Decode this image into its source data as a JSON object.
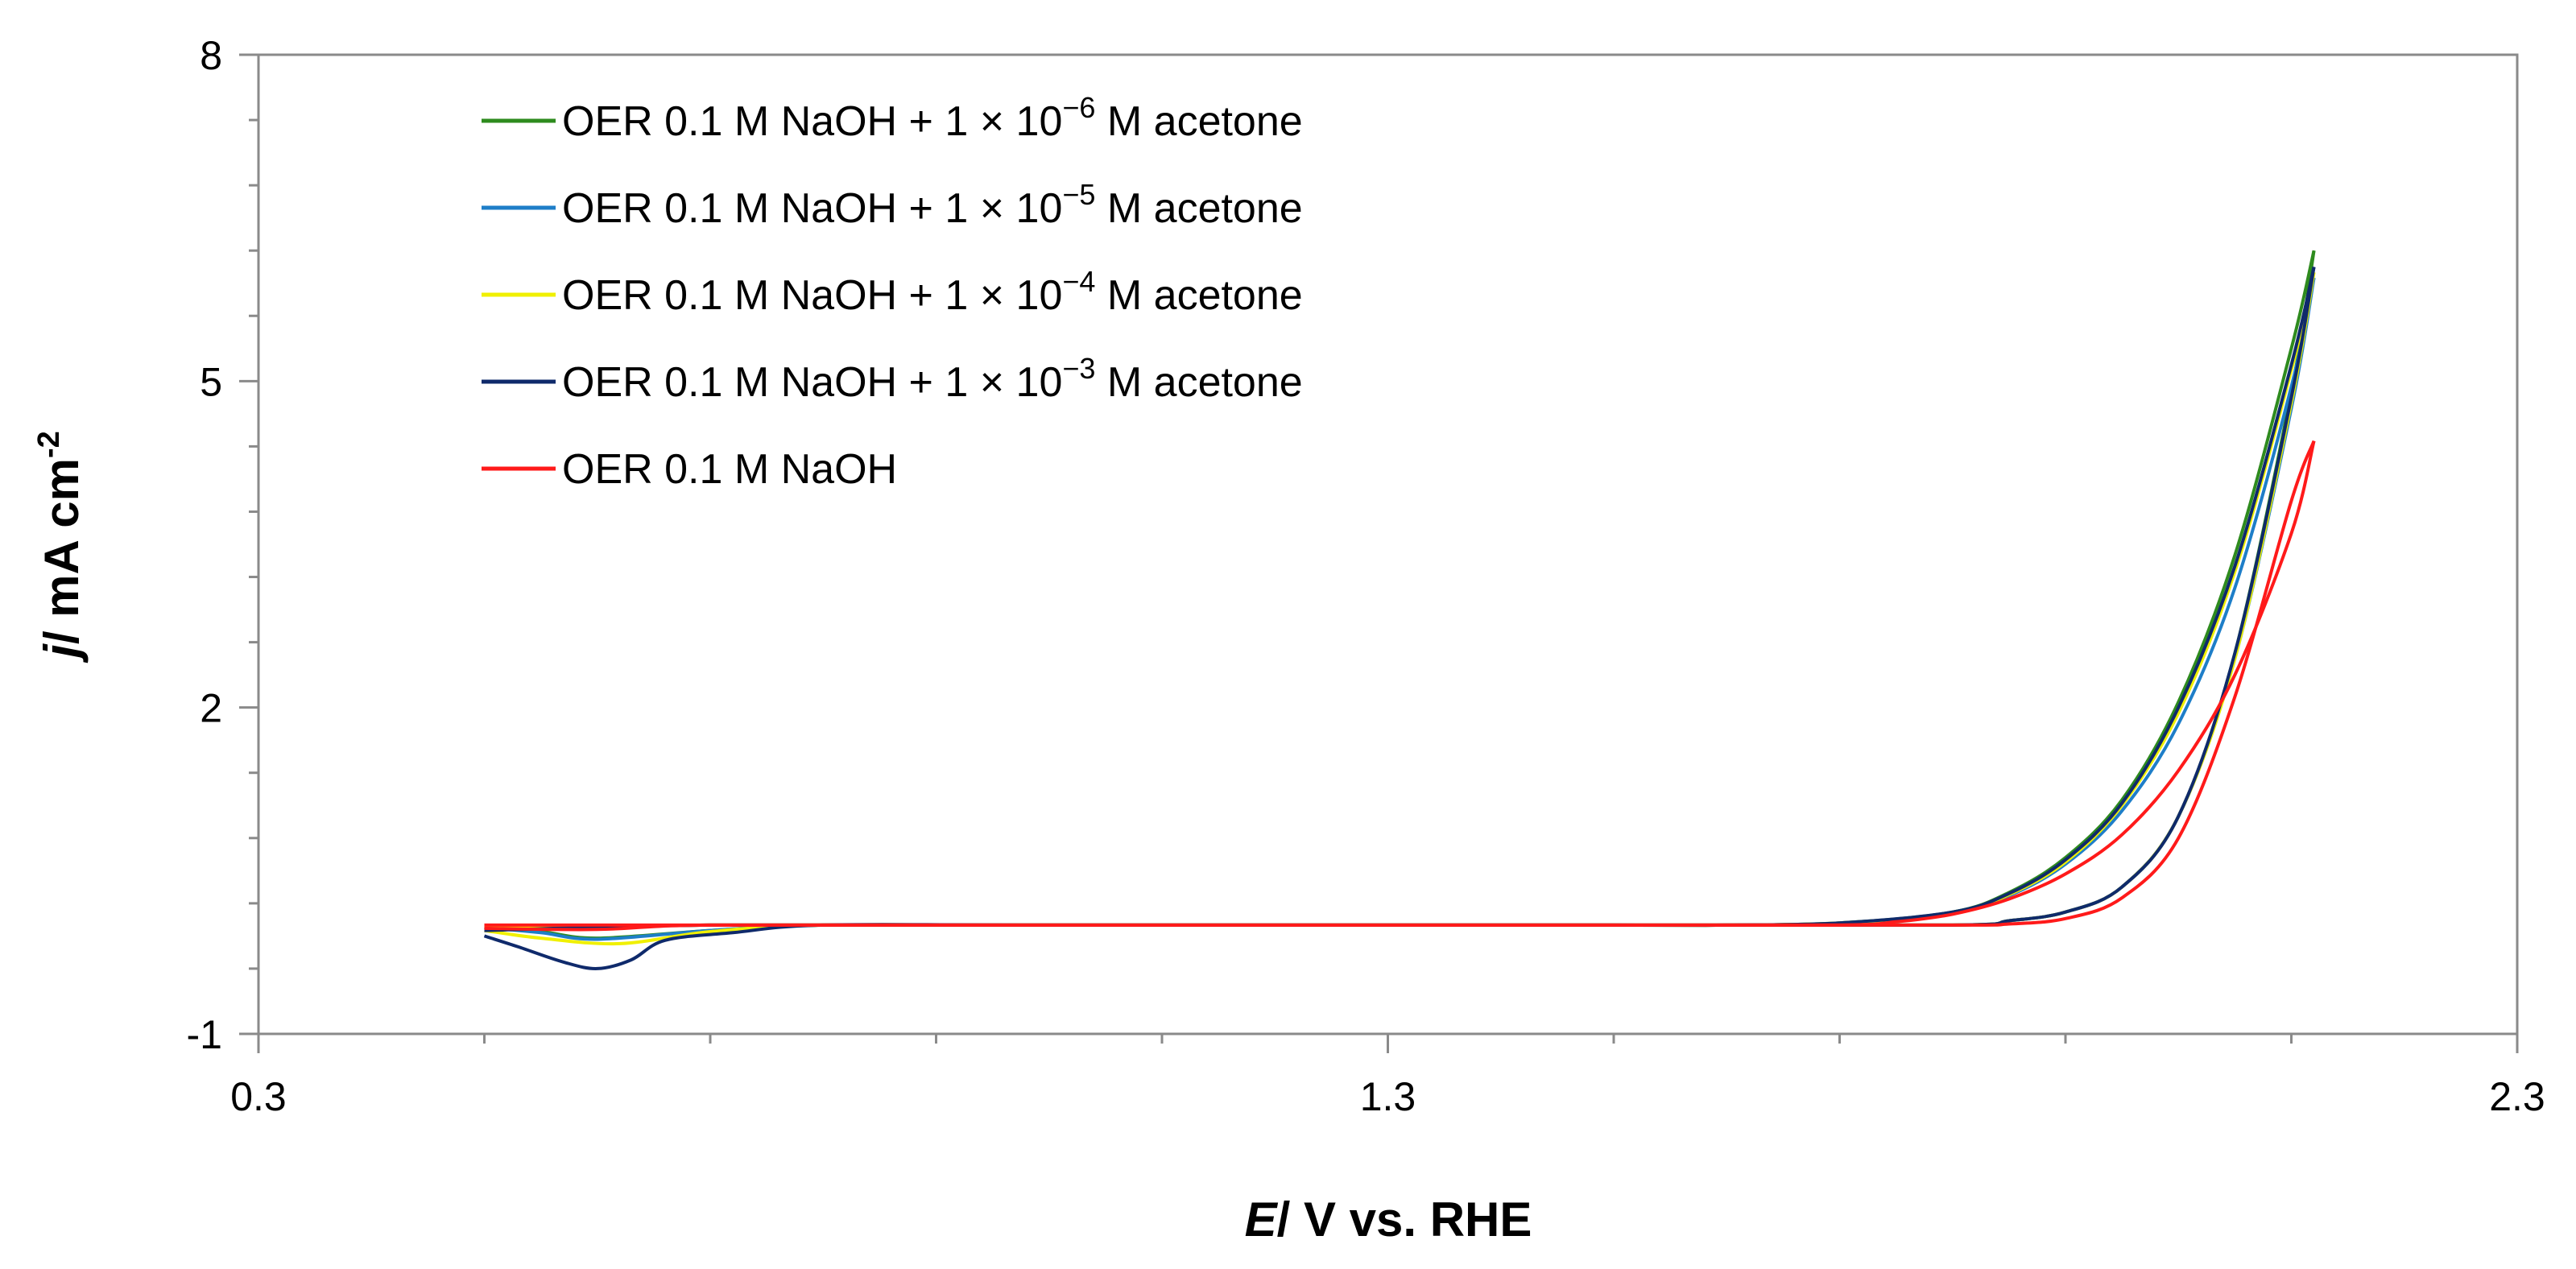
{
  "chart_data": {
    "type": "line",
    "title": "",
    "xlabel": {
      "italic": "E",
      "rest": "/ V  vs. RHE"
    },
    "ylabel": {
      "italic": "j",
      "rest": "/ mA cm",
      "sup": "-2"
    },
    "xlim": [
      0.3,
      2.3
    ],
    "ylim": [
      -1,
      8
    ],
    "xticks": [
      0.3,
      1.3,
      2.3
    ],
    "xtick_labels": [
      "0.3",
      "1.3",
      "2.3"
    ],
    "xminor_step": 0.2,
    "yticks": [
      -1,
      2,
      5,
      8
    ],
    "ytick_labels": [
      "-1",
      "2",
      "5",
      "8"
    ],
    "yminor_step": 0.6,
    "grid": false,
    "legend_position": "top-left",
    "series": [
      {
        "name": "OER 0.1 M NaOH + 1 × 10⁻⁶ M acetone",
        "legend": {
          "pre": "OER 0.1 M NaOH + 1 × 10",
          "sup": "−6",
          "post": " M acetone"
        },
        "color": "#2e8b1e",
        "forward": [
          [
            0.5,
            -0.02
          ],
          [
            0.7,
            0.0
          ],
          [
            1.0,
            0.0
          ],
          [
            1.5,
            0.0
          ],
          [
            1.6,
            0.0
          ],
          [
            1.7,
            0.02
          ],
          [
            1.8,
            0.12
          ],
          [
            1.85,
            0.3
          ],
          [
            1.9,
            0.62
          ],
          [
            1.95,
            1.15
          ],
          [
            2.0,
            2.05
          ],
          [
            2.05,
            3.4
          ],
          [
            2.1,
            5.3
          ],
          [
            2.12,
            6.2
          ]
        ],
        "reverse": [
          [
            2.12,
            6.2
          ],
          [
            2.1,
            4.9
          ],
          [
            2.05,
            2.5
          ],
          [
            2.0,
            1.0
          ],
          [
            1.95,
            0.35
          ],
          [
            1.9,
            0.12
          ],
          [
            1.85,
            0.04
          ],
          [
            1.8,
            0.0
          ],
          [
            1.5,
            0.0
          ],
          [
            1.0,
            0.0
          ],
          [
            0.8,
            0.0
          ],
          [
            0.7,
            -0.05
          ],
          [
            0.6,
            -0.12
          ],
          [
            0.55,
            -0.06
          ],
          [
            0.5,
            -0.02
          ]
        ]
      },
      {
        "name": "OER 0.1 M NaOH + 1 × 10⁻⁵ M acetone",
        "legend": {
          "pre": "OER 0.1 M NaOH + 1 × 10",
          "sup": "−5",
          "post": " M acetone"
        },
        "color": "#1e7ec8",
        "forward": [
          [
            0.5,
            -0.02
          ],
          [
            0.7,
            0.0
          ],
          [
            1.0,
            0.0
          ],
          [
            1.5,
            0.0
          ],
          [
            1.6,
            0.0
          ],
          [
            1.7,
            0.02
          ],
          [
            1.8,
            0.11
          ],
          [
            1.85,
            0.27
          ],
          [
            1.9,
            0.56
          ],
          [
            1.95,
            1.05
          ],
          [
            2.0,
            1.85
          ],
          [
            2.05,
            3.1
          ],
          [
            2.1,
            4.95
          ],
          [
            2.12,
            5.95
          ]
        ],
        "reverse": [
          [
            2.12,
            5.95
          ],
          [
            2.1,
            4.75
          ],
          [
            2.05,
            2.45
          ],
          [
            2.0,
            1.0
          ],
          [
            1.95,
            0.35
          ],
          [
            1.9,
            0.12
          ],
          [
            1.85,
            0.04
          ],
          [
            1.8,
            0.0
          ],
          [
            1.5,
            0.0
          ],
          [
            1.0,
            0.0
          ],
          [
            0.8,
            0.0
          ],
          [
            0.7,
            -0.05
          ],
          [
            0.6,
            -0.13
          ],
          [
            0.55,
            -0.07
          ],
          [
            0.5,
            -0.02
          ]
        ]
      },
      {
        "name": "OER 0.1 M NaOH + 1 × 10⁻⁴ M acetone",
        "legend": {
          "pre": "OER 0.1 M NaOH + 1 × 10",
          "sup": "−4",
          "post": " M acetone"
        },
        "color": "#f0f000",
        "forward": [
          [
            0.5,
            -0.02
          ],
          [
            0.7,
            0.0
          ],
          [
            1.0,
            0.0
          ],
          [
            1.5,
            0.0
          ],
          [
            1.6,
            0.0
          ],
          [
            1.7,
            0.02
          ],
          [
            1.8,
            0.11
          ],
          [
            1.85,
            0.28
          ],
          [
            1.9,
            0.58
          ],
          [
            1.95,
            1.1
          ],
          [
            2.0,
            1.95
          ],
          [
            2.05,
            3.25
          ],
          [
            2.1,
            5.1
          ],
          [
            2.12,
            6.0
          ]
        ],
        "reverse": [
          [
            2.12,
            6.0
          ],
          [
            2.1,
            4.8
          ],
          [
            2.05,
            2.45
          ],
          [
            2.0,
            1.0
          ],
          [
            1.95,
            0.35
          ],
          [
            1.9,
            0.12
          ],
          [
            1.85,
            0.04
          ],
          [
            1.8,
            0.0
          ],
          [
            1.5,
            0.0
          ],
          [
            1.0,
            0.0
          ],
          [
            0.8,
            0.0
          ],
          [
            0.7,
            -0.06
          ],
          [
            0.62,
            -0.17
          ],
          [
            0.55,
            -0.12
          ],
          [
            0.5,
            -0.05
          ]
        ]
      },
      {
        "name": "OER 0.1 M NaOH + 1 × 10⁻³ M acetone",
        "legend": {
          "pre": "OER 0.1 M NaOH + 1 × 10",
          "sup": "−3",
          "post": " M acetone"
        },
        "color": "#0f2a6b",
        "forward": [
          [
            0.5,
            -0.05
          ],
          [
            0.7,
            0.0
          ],
          [
            1.0,
            0.0
          ],
          [
            1.5,
            0.0
          ],
          [
            1.6,
            0.0
          ],
          [
            1.7,
            0.02
          ],
          [
            1.8,
            0.12
          ],
          [
            1.85,
            0.29
          ],
          [
            1.9,
            0.6
          ],
          [
            1.95,
            1.12
          ],
          [
            2.0,
            2.0
          ],
          [
            2.05,
            3.3
          ],
          [
            2.1,
            5.15
          ],
          [
            2.12,
            6.05
          ]
        ],
        "reverse": [
          [
            2.12,
            6.05
          ],
          [
            2.1,
            4.85
          ],
          [
            2.05,
            2.5
          ],
          [
            2.0,
            1.0
          ],
          [
            1.95,
            0.35
          ],
          [
            1.9,
            0.12
          ],
          [
            1.85,
            0.04
          ],
          [
            1.8,
            0.0
          ],
          [
            1.5,
            0.0
          ],
          [
            1.0,
            0.0
          ],
          [
            0.8,
            0.0
          ],
          [
            0.72,
            -0.07
          ],
          [
            0.66,
            -0.14
          ],
          [
            0.63,
            -0.32
          ],
          [
            0.6,
            -0.4
          ],
          [
            0.57,
            -0.34
          ],
          [
            0.53,
            -0.2
          ],
          [
            0.5,
            -0.1
          ]
        ]
      },
      {
        "name": "OER 0.1 M NaOH",
        "legend": {
          "pre": "OER 0.1 M NaOH",
          "sup": "",
          "post": ""
        },
        "color": "#ff1a1a",
        "forward": [
          [
            0.5,
            0.0
          ],
          [
            0.7,
            0.0
          ],
          [
            1.0,
            0.0
          ],
          [
            1.5,
            0.0
          ],
          [
            1.7,
            0.0
          ],
          [
            1.75,
            0.03
          ],
          [
            1.8,
            0.1
          ],
          [
            1.85,
            0.24
          ],
          [
            1.9,
            0.47
          ],
          [
            1.95,
            0.83
          ],
          [
            2.0,
            1.42
          ],
          [
            2.05,
            2.3
          ],
          [
            2.1,
            3.6
          ],
          [
            2.12,
            4.45
          ]
        ],
        "reverse": [
          [
            2.12,
            4.45
          ],
          [
            2.1,
            3.9
          ],
          [
            2.05,
            2.1
          ],
          [
            2.0,
            0.8
          ],
          [
            1.95,
            0.25
          ],
          [
            1.9,
            0.06
          ],
          [
            1.85,
            0.01
          ],
          [
            1.8,
            0.0
          ],
          [
            1.5,
            0.0
          ],
          [
            1.0,
            0.0
          ],
          [
            0.7,
            0.0
          ],
          [
            0.6,
            -0.04
          ],
          [
            0.5,
            -0.03
          ]
        ]
      }
    ]
  }
}
